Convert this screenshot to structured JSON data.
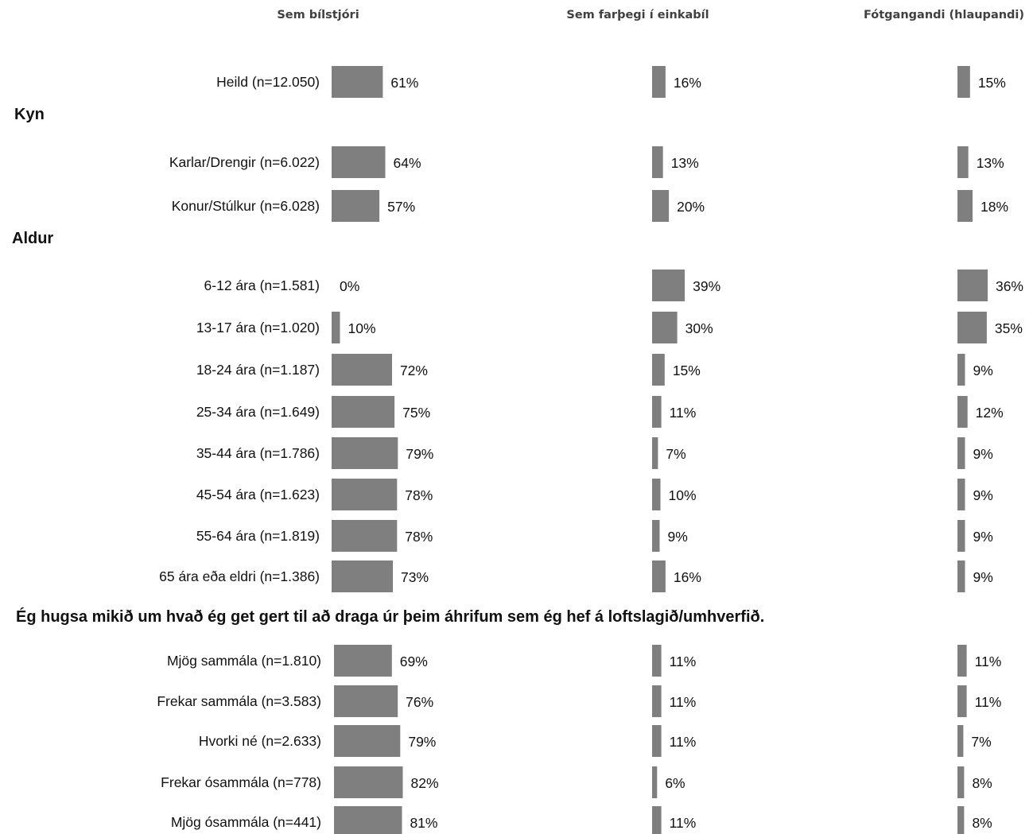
{
  "colors": {
    "bar": "#7f7f7f",
    "text": "#111111",
    "header": "#404040"
  },
  "chart_data": {
    "type": "bar",
    "orientation": "horizontal",
    "series": [
      {
        "name": "Sem bílstjóri"
      },
      {
        "name": "Sem farþegi í einkabíl"
      },
      {
        "name": "Fótgangandi (hlaupandi)"
      }
    ],
    "rows": [
      {
        "label": "Heild (n=12.050)",
        "values": [
          61,
          16,
          15
        ],
        "value_labels": [
          "61%",
          "16%",
          "15%"
        ]
      },
      {
        "section": "Kyn"
      },
      {
        "label": "Karlar/Drengir (n=6.022)",
        "values": [
          64,
          13,
          13
        ],
        "value_labels": [
          "64%",
          "13%",
          "13%"
        ]
      },
      {
        "label": "Konur/Stúlkur (n=6.028)",
        "values": [
          57,
          20,
          18
        ],
        "value_labels": [
          "57%",
          "20%",
          "18%"
        ]
      },
      {
        "section": "Aldur"
      },
      {
        "label": "6-12 ára (n=1.581)",
        "values": [
          0,
          39,
          36
        ],
        "value_labels": [
          "0%",
          "39%",
          "36%"
        ]
      },
      {
        "label": "13-17 ára (n=1.020)",
        "values": [
          10,
          30,
          35
        ],
        "value_labels": [
          "10%",
          "30%",
          "35%"
        ]
      },
      {
        "label": "18-24 ára (n=1.187)",
        "values": [
          72,
          15,
          9
        ],
        "value_labels": [
          "72%",
          "15%",
          "9%"
        ]
      },
      {
        "label": "25-34 ára (n=1.649)",
        "values": [
          75,
          11,
          12
        ],
        "value_labels": [
          "75%",
          "11%",
          "12%"
        ]
      },
      {
        "label": "35-44 ára (n=1.786)",
        "values": [
          79,
          7,
          9
        ],
        "value_labels": [
          "79%",
          "7%",
          "9%"
        ]
      },
      {
        "label": "45-54 ára (n=1.623)",
        "values": [
          78,
          10,
          9
        ],
        "value_labels": [
          "78%",
          "10%",
          "9%"
        ]
      },
      {
        "label": "55-64 ára (n=1.819)",
        "values": [
          78,
          9,
          9
        ],
        "value_labels": [
          "78%",
          "9%",
          "9%"
        ]
      },
      {
        "label": "65 ára eða eldri (n=1.386)",
        "values": [
          73,
          16,
          9
        ],
        "value_labels": [
          "73%",
          "16%",
          "9%"
        ]
      },
      {
        "section": "Ég hugsa mikið um hvað ég get gert til að draga úr þeim áhrifum sem ég hef á loftslagið/umhverfið."
      },
      {
        "label": "Mjög sammála (n=1.810)",
        "values": [
          69,
          11,
          11
        ],
        "value_labels": [
          "69%",
          "11%",
          "11%"
        ]
      },
      {
        "label": "Frekar sammála (n=3.583)",
        "values": [
          76,
          11,
          11
        ],
        "value_labels": [
          "76%",
          "11%",
          "11%"
        ]
      },
      {
        "label": "Hvorki né (n=2.633)",
        "values": [
          79,
          11,
          7
        ],
        "value_labels": [
          "79%",
          "11%",
          "7%"
        ]
      },
      {
        "label": "Frekar ósammála (n=778)",
        "values": [
          82,
          6,
          8
        ],
        "value_labels": [
          "82%",
          "6%",
          "8%"
        ]
      },
      {
        "label": "Mjög ósammála (n=441)",
        "values": [
          81,
          11,
          8
        ],
        "value_labels": [
          "81%",
          "11%",
          "8%"
        ]
      }
    ],
    "xlim": [
      0,
      100
    ],
    "grid": false,
    "legend": "none"
  }
}
